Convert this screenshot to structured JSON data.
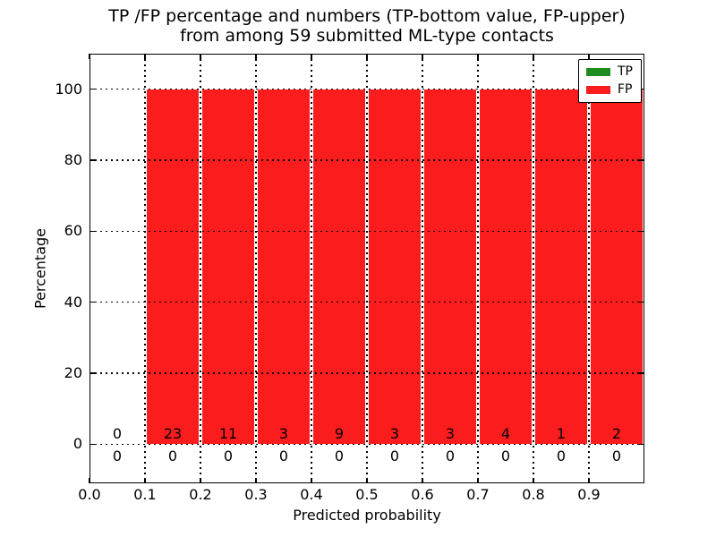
{
  "chart_data": {
    "type": "bar",
    "stacked": true,
    "title_line1": "TP /FP percentage and numbers (TP-bottom value, FP-upper)",
    "title_line2": "from among 59 submitted ML-type contacts",
    "xlabel": "Predicted probability",
    "ylabel": "Percentage",
    "total_contacts": 59,
    "xlim": [
      0.0,
      1.0
    ],
    "ylim": [
      -11,
      110
    ],
    "bin_width": 0.1,
    "x_tick_values": [
      0.0,
      0.1,
      0.2,
      0.3,
      0.4,
      0.5,
      0.6,
      0.7,
      0.8,
      0.9
    ],
    "x_tick_labels": [
      "0.0",
      "0.1",
      "0.2",
      "0.3",
      "0.4",
      "0.5",
      "0.6",
      "0.7",
      "0.8",
      "0.9"
    ],
    "y_tick_values": [
      0,
      20,
      40,
      60,
      80,
      100
    ],
    "y_tick_labels": [
      "0",
      "20",
      "40",
      "60",
      "80",
      "100"
    ],
    "grid": {
      "visible": true,
      "linestyle": "dotted",
      "color": "#000000"
    },
    "series": [
      {
        "name": "TP",
        "color": "#1e8c1e",
        "pct": [
          0,
          0,
          0,
          0,
          0,
          0,
          0,
          0,
          0,
          0
        ],
        "counts": [
          0,
          0,
          0,
          0,
          0,
          0,
          0,
          0,
          0,
          0
        ]
      },
      {
        "name": "FP",
        "color": "#fb1d1d",
        "pct": [
          0,
          100,
          100,
          100,
          100,
          100,
          100,
          100,
          100,
          100
        ],
        "counts": [
          0,
          23,
          11,
          3,
          9,
          3,
          3,
          4,
          1,
          2
        ]
      }
    ],
    "annotations": {
      "fp_counts_row": [
        "0",
        "23",
        "11",
        "3",
        "9",
        "3",
        "3",
        "4",
        "1",
        "2"
      ],
      "tp_counts_row": [
        "0",
        "0",
        "0",
        "0",
        "0",
        "0",
        "0",
        "0",
        "0",
        "0"
      ]
    },
    "legend": {
      "position": "upper right",
      "entries": [
        {
          "label": "TP",
          "color": "#1e8c1e"
        },
        {
          "label": "FP",
          "color": "#fb1d1d"
        }
      ]
    }
  }
}
